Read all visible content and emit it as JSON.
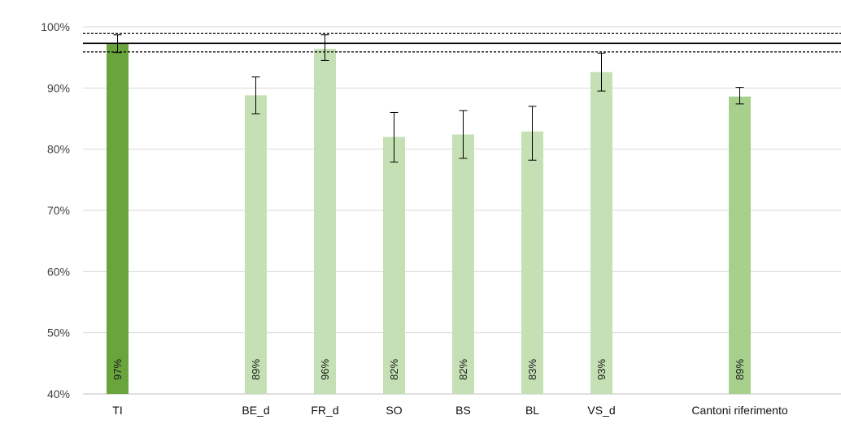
{
  "chart_data": {
    "type": "bar",
    "title": "",
    "xlabel": "",
    "ylabel": "",
    "ylim": [
      40,
      100
    ],
    "ytick_values": [
      40,
      50,
      60,
      70,
      80,
      90,
      100
    ],
    "ytick_labels": [
      "40%",
      "50%",
      "60%",
      "70%",
      "80%",
      "90%",
      "100%"
    ],
    "grid": true,
    "categories": [
      "TI",
      "",
      "BE_d",
      "FR_d",
      "SO",
      "BS",
      "BL",
      "VS_d",
      "",
      "Cantoni riferimento"
    ],
    "values": [
      97.2,
      null,
      88.8,
      96.4,
      82.0,
      82.4,
      82.9,
      92.6,
      null,
      88.6
    ],
    "value_labels": [
      "97%",
      "",
      "89%",
      "96%",
      "82%",
      "82%",
      "83%",
      "93%",
      "",
      "89%"
    ],
    "error_low": [
      95.8,
      null,
      85.8,
      94.5,
      77.9,
      78.5,
      78.2,
      89.5,
      null,
      87.4
    ],
    "error_high": [
      98.7,
      null,
      91.8,
      98.7,
      86.0,
      86.3,
      87.0,
      95.7,
      null,
      90.1
    ],
    "bar_colors": [
      "#6aa43c",
      null,
      "#c5e0b4",
      "#c5e0b4",
      "#c5e0b4",
      "#c5e0b4",
      "#c5e0b4",
      "#c5e0b4",
      null,
      "#a6d08c"
    ],
    "reference_lines": [
      {
        "value": 97.3,
        "style": "solid"
      },
      {
        "value": 98.9,
        "style": "dashed"
      },
      {
        "value": 95.9,
        "style": "dashed"
      }
    ],
    "colors": {
      "gridline": "#d9d9d9",
      "axis": "#bfbfbf",
      "reference_line": "#000000",
      "error_bar": "#000000"
    }
  }
}
